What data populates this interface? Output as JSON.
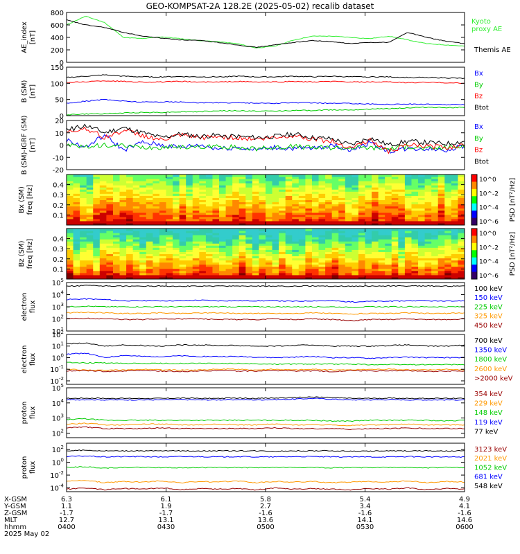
{
  "title": "GEO-KOMPSAT-2A 128.2E (2025-05-02) recalib dataset",
  "colors": {
    "black": "#000000",
    "blue": "#0000ff",
    "green": "#00cc00",
    "red": "#ff0000",
    "orange": "#ff9900",
    "darkred": "#990000",
    "lime": "#33ee33"
  },
  "chart_data": [
    {
      "type": "line",
      "ylabel": [
        "AE_index",
        "[nT]"
      ],
      "yticks": [
        "0",
        "200",
        "400",
        "600",
        "800"
      ],
      "ylim": [
        0,
        800
      ],
      "series": [
        {
          "name": "Kyoto proxy AE",
          "color": "#33ee33",
          "legend_lines": [
            "Kyoto",
            "proxy AE"
          ],
          "values": [
            600,
            740,
            640,
            400,
            380,
            410,
            380,
            350,
            330,
            300,
            230,
            260,
            360,
            420,
            420,
            400,
            380,
            420,
            360,
            300,
            280,
            260
          ]
        },
        {
          "name": "Themis AE",
          "color": "#000000",
          "legend_lines": [
            "Themis AE"
          ],
          "values": [
            680,
            600,
            560,
            480,
            420,
            390,
            360,
            350,
            320,
            280,
            240,
            280,
            320,
            350,
            330,
            300,
            320,
            320,
            480,
            400,
            340,
            300
          ]
        }
      ]
    },
    {
      "type": "line",
      "ylabel": [
        "B (SM)",
        "[nT]"
      ],
      "yticks": [
        "0",
        "50",
        "100",
        "150"
      ],
      "ylim": [
        0,
        150
      ],
      "series": [
        {
          "name": "Bx",
          "color": "#0000ff",
          "values": [
            38,
            45,
            50,
            45,
            42,
            43,
            42,
            40,
            40,
            40,
            39,
            38,
            40,
            40,
            38,
            38,
            36,
            35,
            36,
            35,
            34,
            34
          ]
        },
        {
          "name": "By",
          "color": "#00cc00",
          "values": [
            3,
            5,
            6,
            8,
            10,
            10,
            12,
            12,
            15,
            15,
            14,
            14,
            16,
            16,
            18,
            18,
            20,
            22,
            24,
            26,
            25,
            25
          ]
        },
        {
          "name": "Bz",
          "color": "#ff0000",
          "values": [
            102,
            105,
            108,
            106,
            104,
            104,
            106,
            104,
            104,
            106,
            104,
            104,
            106,
            104,
            106,
            104,
            104,
            104,
            102,
            103,
            102,
            100
          ]
        },
        {
          "name": "Btot",
          "color": "#000000",
          "values": [
            118,
            122,
            126,
            122,
            120,
            120,
            121,
            120,
            120,
            122,
            120,
            120,
            122,
            120,
            122,
            120,
            120,
            120,
            118,
            118,
            117,
            115
          ]
        }
      ]
    },
    {
      "type": "line",
      "ylabel": [
        "B (SM)-IGRF (SM)",
        "[nT]"
      ],
      "yticks": [
        "-20",
        "-10",
        "0",
        "10",
        "20"
      ],
      "ylim": [
        -20,
        20
      ],
      "series": [
        {
          "name": "Bx",
          "color": "#0000ff",
          "values": [
            4,
            -2,
            8,
            -4,
            2,
            0,
            -2,
            0,
            -3,
            -2,
            -4,
            -2,
            -3,
            -3,
            0,
            -4,
            2,
            -5,
            -3,
            -3,
            -4,
            -1
          ]
        },
        {
          "name": "By",
          "color": "#00cc00",
          "values": [
            0,
            -2,
            0,
            -1,
            -2,
            -2,
            -1,
            -2,
            -1,
            -2,
            -3,
            -2,
            -1,
            -2,
            -2,
            -2,
            -2,
            -3,
            -1,
            -3,
            -2,
            -1
          ]
        },
        {
          "name": "Bz",
          "color": "#ff0000",
          "values": [
            10,
            14,
            6,
            12,
            8,
            4,
            8,
            6,
            7,
            6,
            5,
            6,
            8,
            5,
            3,
            -2,
            4,
            -5,
            0,
            -1,
            -2,
            0
          ]
        },
        {
          "name": "Btot",
          "color": "#000000",
          "values": [
            12,
            16,
            10,
            14,
            10,
            6,
            9,
            7,
            8,
            7,
            6,
            7,
            9,
            6,
            5,
            0,
            6,
            0,
            3,
            2,
            1,
            3
          ]
        }
      ]
    },
    {
      "type": "heatmap",
      "ylabel": [
        "Bx (SM)",
        "freq [Hz]"
      ],
      "yticks": [
        "0.1",
        "0.2",
        "0.3",
        "0.4"
      ],
      "ylim": [
        0,
        0.5
      ],
      "colorbar": {
        "label": "PSD [nT²/Hz]",
        "ticks": [
          "10^0",
          "10^-2",
          "10^-4",
          "10^-6"
        ]
      }
    },
    {
      "type": "heatmap",
      "ylabel": [
        "Bz (SM)",
        "freq [Hz]"
      ],
      "yticks": [
        "0.1",
        "0.2",
        "0.3",
        "0.4"
      ],
      "ylim": [
        0,
        0.5
      ],
      "colorbar": {
        "label": "PSD [nT²/Hz]",
        "ticks": [
          "10^0",
          "10^-2",
          "10^-4",
          "10^-6"
        ]
      }
    },
    {
      "type": "line",
      "ylabel": [
        "electron",
        "flux"
      ],
      "yticks": [
        "10^1",
        "10^2",
        "10^3",
        "10^4",
        "10^5"
      ],
      "ylim": [
        1,
        5
      ],
      "scale": "log",
      "series": [
        {
          "name": "100 keV",
          "color": "#000000",
          "values": [
            4.7,
            4.75,
            4.72,
            4.7,
            4.7,
            4.72,
            4.7,
            4.7,
            4.7,
            4.72,
            4.7,
            4.7,
            4.7,
            4.72,
            4.7,
            4.7,
            4.7,
            4.72,
            4.72,
            4.72,
            4.7,
            4.7
          ]
        },
        {
          "name": "150 keV",
          "color": "#0000ff",
          "values": [
            3.6,
            3.65,
            3.6,
            3.5,
            3.5,
            3.5,
            3.5,
            3.55,
            3.5,
            3.5,
            3.5,
            3.5,
            3.45,
            3.5,
            3.5,
            3.4,
            3.45,
            3.45,
            3.5,
            3.5,
            3.45,
            3.5
          ]
        },
        {
          "name": "225 keV",
          "color": "#00cc00",
          "values": [
            3.0,
            3.05,
            3.0,
            3.0,
            3.0,
            3.0,
            3.0,
            3.0,
            3.0,
            3.0,
            3.0,
            3.0,
            3.0,
            3.0,
            3.0,
            2.95,
            3.0,
            3.0,
            3.0,
            3.0,
            3.0,
            3.0
          ]
        },
        {
          "name": "325 keV",
          "color": "#ff9900",
          "values": [
            2.5,
            2.55,
            2.5,
            2.45,
            2.45,
            2.5,
            2.45,
            2.5,
            2.5,
            2.45,
            2.45,
            2.45,
            2.45,
            2.5,
            2.45,
            2.4,
            2.45,
            2.45,
            2.5,
            2.45,
            2.45,
            2.5
          ]
        },
        {
          "name": "450 keV",
          "color": "#990000",
          "values": [
            2.0,
            2.05,
            2.0,
            1.95,
            1.95,
            2.0,
            2.0,
            2.0,
            1.95,
            1.95,
            1.95,
            2.0,
            1.95,
            2.0,
            1.95,
            1.85,
            1.95,
            1.95,
            2.0,
            1.95,
            1.95,
            2.0
          ]
        }
      ]
    },
    {
      "type": "line",
      "ylabel": [
        "electron",
        "flux"
      ],
      "yticks": [
        "10^-2",
        "10^-1",
        "10^0",
        "10^1",
        "10^2"
      ],
      "ylim": [
        -2.3,
        2
      ],
      "scale": "log",
      "series": [
        {
          "name": "700 keV",
          "color": "#000000",
          "values": [
            1.2,
            1.25,
            1.0,
            1.1,
            1.05,
            1.0,
            1.1,
            1.1,
            1.05,
            1.05,
            1.0,
            1.0,
            1.05,
            1.1,
            1.0,
            1.0,
            1.0,
            1.05,
            1.1,
            1.0,
            1.0,
            1.1
          ]
        },
        {
          "name": "1350 keV",
          "color": "#0000ff",
          "values": [
            0.3,
            0.4,
            0.0,
            0.2,
            0.1,
            0.1,
            0.15,
            0.1,
            0.1,
            0.1,
            0.05,
            0.0,
            0.05,
            0.1,
            0.0,
            0.0,
            -0.05,
            0.0,
            0.05,
            0.0,
            0.0,
            0.0
          ]
        },
        {
          "name": "1800 keV",
          "color": "#00cc00",
          "values": [
            -0.4,
            -0.45,
            -0.45,
            -0.5,
            -0.5,
            -0.5,
            -0.5,
            -0.5,
            -0.5,
            -0.5,
            -0.55,
            -0.55,
            -0.55,
            -0.55,
            -0.55,
            -0.55,
            -0.6,
            -0.6,
            -0.6,
            -0.6,
            -0.6,
            -0.6
          ]
        },
        {
          "name": "2600 keV",
          "color": "#ff9900",
          "values": [
            -1.0,
            -1.05,
            -1.1,
            -1.05,
            -1.0,
            -1.05,
            -1.05,
            -1.05,
            -1.0,
            -1.0,
            -1.05,
            -1.0,
            -1.05,
            -1.0,
            -1.05,
            -1.05,
            -1.0,
            -1.0,
            -1.05,
            -1.05,
            -1.0,
            -1.05
          ]
        },
        {
          "name": ">2000 keV",
          "color": "#990000",
          "values": [
            -1.15,
            -1.1,
            -1.2,
            -1.15,
            -1.1,
            -1.15,
            -1.2,
            -1.15,
            -1.1,
            -1.15,
            -1.15,
            -1.1,
            -1.15,
            -1.15,
            -1.2,
            -1.1,
            -1.15,
            -1.15,
            -1.1,
            -1.2,
            -1.15,
            -1.15
          ]
        }
      ]
    },
    {
      "type": "line",
      "ylabel": [
        "proton",
        "flux"
      ],
      "yticks": [
        "10^2",
        "10^3",
        "10^4",
        "10^5"
      ],
      "ylim": [
        1.7,
        5
      ],
      "scale": "log",
      "series": [
        {
          "name": "354 keV",
          "color": "#990000",
          "values": [
            2.35,
            2.4,
            2.3,
            2.3,
            2.3,
            2.35,
            2.3,
            2.3,
            2.3,
            2.3,
            2.3,
            2.35,
            2.3,
            2.3,
            2.3,
            2.25,
            2.3,
            2.3,
            2.35,
            2.3,
            2.3,
            2.3
          ]
        },
        {
          "name": "229 keV",
          "color": "#ff9900",
          "values": [
            2.6,
            2.65,
            2.55,
            2.55,
            2.6,
            2.6,
            2.55,
            2.55,
            2.6,
            2.55,
            2.55,
            2.6,
            2.55,
            2.55,
            2.55,
            2.5,
            2.55,
            2.55,
            2.6,
            2.55,
            2.55,
            2.55
          ]
        },
        {
          "name": "148 keV",
          "color": "#00cc00",
          "values": [
            2.9,
            2.95,
            2.85,
            2.85,
            2.85,
            2.85,
            2.85,
            2.85,
            2.85,
            2.85,
            2.85,
            2.85,
            2.85,
            2.85,
            2.8,
            2.8,
            2.85,
            2.85,
            2.85,
            2.85,
            2.8,
            2.85
          ]
        },
        {
          "name": "119 keV",
          "color": "#0000ff",
          "values": [
            4.2,
            4.22,
            4.2,
            4.2,
            4.2,
            4.2,
            4.22,
            4.2,
            4.2,
            4.22,
            4.2,
            4.22,
            4.25,
            4.3,
            4.25,
            4.2,
            4.2,
            4.22,
            4.2,
            4.2,
            4.2,
            4.2
          ]
        },
        {
          "name": "77 keV",
          "color": "#000000",
          "values": [
            4.3,
            4.32,
            4.3,
            4.3,
            4.3,
            4.3,
            4.32,
            4.3,
            4.3,
            4.32,
            4.3,
            4.32,
            4.35,
            4.4,
            4.35,
            4.3,
            4.3,
            4.32,
            4.3,
            4.3,
            4.3,
            4.3
          ]
        }
      ]
    },
    {
      "type": "line",
      "ylabel": [
        "proton",
        "flux"
      ],
      "yticks": [
        "10^-4",
        "10^-2",
        "10^0",
        "10^2"
      ],
      "ylim": [
        -4.6,
        3
      ],
      "scale": "log",
      "series": [
        {
          "name": "3123 keV",
          "color": "#990000",
          "values": [
            -4.2,
            -4.0,
            -4.3,
            -4.1,
            -4.2,
            -4.0,
            -4.3,
            -4.1,
            -4.2,
            -4.1,
            -4.3,
            -4.0,
            -4.2,
            -4.1,
            -4.2,
            -4.3,
            -4.1,
            -4.2,
            -4.0,
            -4.3,
            -4.1,
            -4.2
          ]
        },
        {
          "name": "2021 keV",
          "color": "#ff9900",
          "values": [
            -3.0,
            -2.8,
            -3.2,
            -3.0,
            -3.1,
            -2.9,
            -3.2,
            -3.0,
            -3.1,
            -2.9,
            -3.2,
            -3.0,
            -3.1,
            -3.0,
            -3.2,
            -3.1,
            -3.0,
            -3.1,
            -2.9,
            -3.2,
            -3.0,
            -3.1
          ]
        },
        {
          "name": "1052 keV",
          "color": "#00cc00",
          "values": [
            -0.8,
            -0.7,
            -0.9,
            -0.8,
            -0.8,
            -0.8,
            -0.85,
            -0.8,
            -0.8,
            -0.8,
            -0.85,
            -0.8,
            -0.8,
            -0.8,
            -0.85,
            -0.85,
            -0.8,
            -0.8,
            -0.8,
            -0.85,
            -0.8,
            -0.8
          ]
        },
        {
          "name": "681 keV",
          "color": "#0000ff",
          "values": [
            0.9,
            1.0,
            0.85,
            0.9,
            0.9,
            0.85,
            0.9,
            0.9,
            0.85,
            0.9,
            0.85,
            0.85,
            0.9,
            0.9,
            0.85,
            0.85,
            0.85,
            0.85,
            0.9,
            0.85,
            0.85,
            0.85
          ]
        },
        {
          "name": "548 keV",
          "color": "#000000",
          "values": [
            1.8,
            1.9,
            1.8,
            1.8,
            1.8,
            1.8,
            1.8,
            1.8,
            1.8,
            1.8,
            1.8,
            1.75,
            1.8,
            1.8,
            1.8,
            1.75,
            1.75,
            1.8,
            1.8,
            1.8,
            1.75,
            1.8
          ]
        }
      ]
    }
  ],
  "orbit_table": {
    "row_labels": [
      "X-GSM",
      "Y-GSM",
      "Z-GSM",
      "MLT",
      "hhmm",
      "2025 May 02"
    ],
    "columns": [
      {
        "x": "6.3",
        "y": "1.1",
        "z": "-1.7",
        "mlt": "12.7",
        "time": "0400"
      },
      {
        "x": "6.1",
        "y": "1.9",
        "z": "-1.7",
        "mlt": "13.1",
        "time": "0430"
      },
      {
        "x": "5.8",
        "y": "2.7",
        "z": "-1.6",
        "mlt": "13.6",
        "time": "0500"
      },
      {
        "x": "5.4",
        "y": "3.4",
        "z": "-1.6",
        "mlt": "14.1",
        "time": "0530"
      },
      {
        "x": "4.9",
        "y": "4.1",
        "z": "-1.6",
        "mlt": "14.6",
        "time": "0600"
      }
    ]
  }
}
